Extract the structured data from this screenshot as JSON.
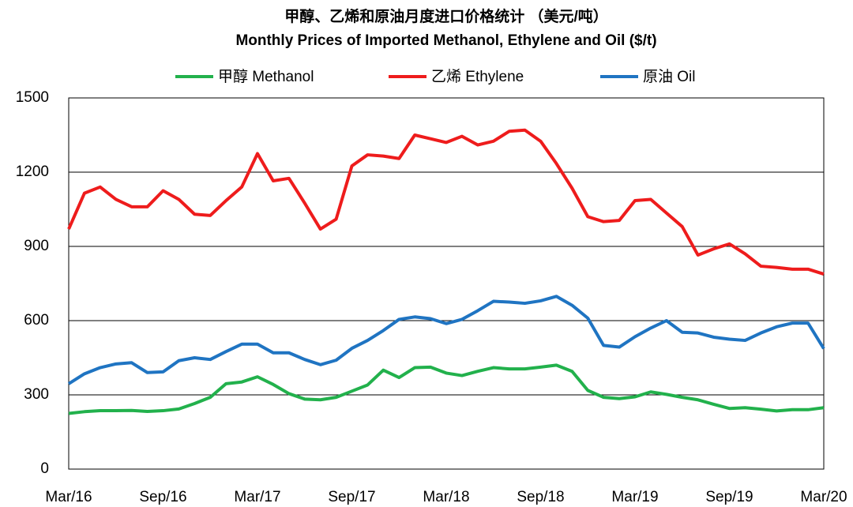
{
  "chart_data": {
    "type": "line",
    "title": "甲醇、乙烯和原油月度进口价格统计 （美元/吨）",
    "subtitle": "Monthly Prices of Imported Methanol, Ethylene and Oil ($/t)",
    "categories": [
      "Mar/16",
      null,
      null,
      null,
      null,
      null,
      "Sep/16",
      null,
      null,
      null,
      null,
      null,
      "Mar/17",
      null,
      null,
      null,
      null,
      null,
      "Sep/17",
      null,
      null,
      null,
      null,
      null,
      "Mar/18",
      null,
      null,
      null,
      null,
      null,
      "Sep/18",
      null,
      null,
      null,
      null,
      null,
      "Mar/19",
      null,
      null,
      null,
      null,
      null,
      "Sep/19",
      null,
      null,
      null,
      null,
      null,
      "Mar/20"
    ],
    "series": [
      {
        "name": "甲醇 Methanol",
        "color": "#22b14c",
        "values": [
          225,
          232,
          236,
          236,
          237,
          233,
          236,
          243,
          265,
          290,
          345,
          352,
          373,
          342,
          305,
          283,
          280,
          290,
          315,
          340,
          400,
          370,
          410,
          412,
          388,
          378,
          395,
          410,
          405,
          405,
          412,
          420,
          395,
          318,
          290,
          285,
          292,
          312,
          302,
          290,
          280,
          262,
          245,
          248,
          242,
          235,
          240,
          240,
          248
        ]
      },
      {
        "name": "乙烯 Ethylene",
        "color": "#ee1c1c",
        "values": [
          970,
          1115,
          1140,
          1090,
          1060,
          1060,
          1125,
          1090,
          1030,
          1025,
          1085,
          1140,
          1275,
          1165,
          1175,
          1075,
          970,
          1010,
          1225,
          1270,
          1265,
          1255,
          1350,
          1335,
          1320,
          1345,
          1310,
          1325,
          1365,
          1370,
          1325,
          1235,
          1135,
          1020,
          1000,
          1005,
          1085,
          1090,
          1035,
          980,
          865,
          890,
          910,
          870,
          820,
          815,
          808,
          808,
          788
        ]
      },
      {
        "name": "原油 Oil",
        "color": "#1f74c2",
        "values": [
          345,
          385,
          410,
          425,
          430,
          390,
          393,
          438,
          450,
          443,
          475,
          505,
          505,
          470,
          470,
          443,
          422,
          440,
          488,
          520,
          560,
          605,
          615,
          608,
          588,
          605,
          640,
          678,
          675,
          670,
          680,
          698,
          662,
          610,
          500,
          493,
          535,
          570,
          600,
          553,
          550,
          533,
          525,
          520,
          550,
          575,
          590,
          590,
          487
        ]
      }
    ],
    "ylim": [
      0,
      1500
    ],
    "yticks": [
      0,
      300,
      600,
      900,
      1200,
      1500
    ],
    "grid": true,
    "legend": "top"
  }
}
